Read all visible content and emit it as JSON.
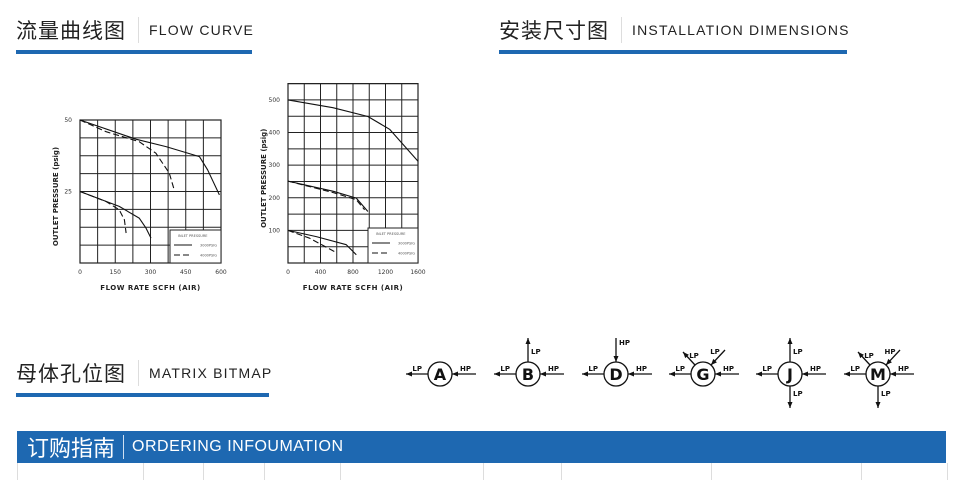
{
  "sections": {
    "flow_curve": {
      "cn": "流量曲线图",
      "en": "FLOW CURVE"
    },
    "installation": {
      "cn": "安装尺寸图",
      "en": "INSTALLATION DIMENSIONS"
    },
    "matrix": {
      "cn": "母体孔位图",
      "en": "MATRIX BITMAP"
    },
    "ordering": {
      "cn": "订购指南",
      "en": "ORDERING INFOUMATION"
    }
  },
  "colors": {
    "accent": "#1e68b1",
    "line": "#222222"
  },
  "matrix_ports": [
    {
      "letter": "A",
      "ports": [
        "LP",
        "HP"
      ]
    },
    {
      "letter": "B",
      "ports": [
        "LP",
        "HP",
        "LP"
      ]
    },
    {
      "letter": "D",
      "ports": [
        "LP",
        "HP",
        "HP"
      ]
    },
    {
      "letter": "G",
      "ports": [
        "LP",
        "HP",
        "LP",
        "LP"
      ]
    },
    {
      "letter": "J",
      "ports": [
        "LP",
        "HP",
        "LP",
        "LP"
      ]
    },
    {
      "letter": "M",
      "ports": [
        "LP",
        "HP",
        "LP",
        "HP",
        "LP"
      ]
    }
  ],
  "chart_data": [
    {
      "type": "line",
      "xlabel": "FLOW RATE SCFH (AIR)",
      "ylabel": "OUTLET PRESSURE (psig)",
      "xlim": [
        0,
        600
      ],
      "ylim": [
        0,
        50
      ],
      "xticks": [
        0,
        150,
        300,
        450,
        600
      ],
      "yticks": [
        25,
        50
      ],
      "grid": true,
      "legend": {
        "title": "INLET PRESSURE",
        "placement": "bottom-right",
        "entries": [
          "3000PSIG",
          "4000PSIG"
        ]
      },
      "series": [
        {
          "style": "solid",
          "points": [
            [
              0,
              50
            ],
            [
              238,
              43.3
            ],
            [
              366,
              40.7
            ],
            [
              508,
              37.2
            ],
            [
              543,
              32.6
            ],
            [
              593,
              23.8
            ]
          ]
        },
        {
          "style": "dashed",
          "points": [
            [
              0,
              50
            ],
            [
              111,
              45.9
            ],
            [
              252,
              42.4
            ],
            [
              323,
              38.4
            ],
            [
              380,
              31.4
            ],
            [
              401,
              25.6
            ]
          ]
        },
        {
          "style": "solid",
          "points": [
            [
              0,
              25
            ],
            [
              167,
              19.8
            ],
            [
              252,
              15.7
            ],
            [
              281,
              12.2
            ],
            [
              302,
              8.7
            ]
          ]
        },
        {
          "style": "dashed",
          "points": [
            [
              0,
              25
            ],
            [
              111,
              21.5
            ],
            [
              167,
              18.6
            ],
            [
              189,
              15.1
            ],
            [
              196,
              10.5
            ]
          ]
        }
      ]
    },
    {
      "type": "line",
      "xlabel": "FLOW RATE SCFH (AIR)",
      "ylabel": "OUTLET PRESSURE (psig)",
      "xlim": [
        0,
        1600
      ],
      "ylim": [
        0,
        550
      ],
      "xticks": [
        0,
        400,
        800,
        1200,
        1600
      ],
      "yticks": [
        100,
        200,
        300,
        400,
        500
      ],
      "grid": true,
      "legend": {
        "title": "INLET PRESSURE",
        "placement": "bottom-right",
        "entries": [
          "3000PSIG",
          "4000PSIG"
        ]
      },
      "series": [
        {
          "style": "solid",
          "points": [
            [
              0,
              500
            ],
            [
              553,
              476
            ],
            [
              984,
              449
            ],
            [
              1250,
              410
            ],
            [
              1414,
              364
            ],
            [
              1600,
              312
            ]
          ]
        },
        {
          "style": "solid",
          "points": [
            [
              0,
              251
            ],
            [
              553,
              220
            ],
            [
              840,
              199
            ],
            [
              984,
              158
            ]
          ]
        },
        {
          "style": "dashed",
          "points": [
            [
              0,
              251
            ],
            [
              553,
              216
            ],
            [
              840,
              194
            ],
            [
              943,
              163
            ]
          ]
        },
        {
          "style": "solid",
          "points": [
            [
              0,
              100
            ],
            [
              348,
              81
            ],
            [
              717,
              56
            ],
            [
              840,
              25
            ]
          ]
        },
        {
          "style": "dashed",
          "points": [
            [
              0,
              100
            ],
            [
              266,
              76
            ],
            [
              594,
              32
            ]
          ]
        }
      ]
    }
  ]
}
